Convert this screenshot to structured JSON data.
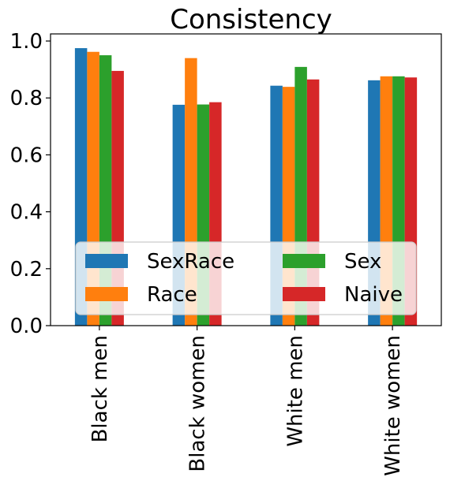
{
  "chart_data": {
    "type": "bar",
    "title": "Consistency",
    "xlabel": "",
    "ylabel": "",
    "categories": [
      "Black men",
      "Black women",
      "White men",
      "White women"
    ],
    "series": [
      {
        "name": "SexRace",
        "color": "#1f77b4",
        "values": [
          0.975,
          0.776,
          0.843,
          0.862
        ]
      },
      {
        "name": "Race",
        "color": "#ff7f0e",
        "values": [
          0.962,
          0.94,
          0.839,
          0.876
        ]
      },
      {
        "name": "Sex",
        "color": "#2ca02c",
        "values": [
          0.95,
          0.777,
          0.909,
          0.876
        ]
      },
      {
        "name": "Naive",
        "color": "#d62728",
        "values": [
          0.895,
          0.785,
          0.865,
          0.872
        ]
      }
    ],
    "ylim": [
      0.0,
      1.025
    ],
    "yticks": [
      "0.0",
      "0.2",
      "0.4",
      "0.6",
      "0.8",
      "1.0"
    ],
    "grid": false,
    "legend": {
      "placement": "lower center",
      "columns": 2
    }
  }
}
